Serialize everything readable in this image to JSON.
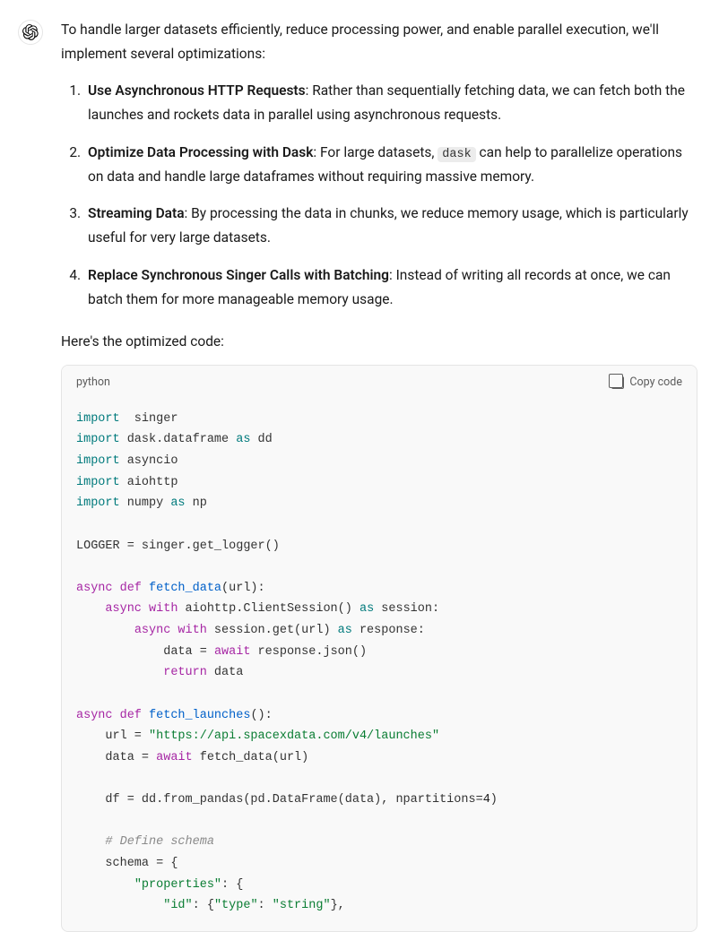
{
  "intro": "To handle larger datasets efficiently, reduce processing power, and enable parallel execution, we'll implement several optimizations:",
  "items": [
    {
      "title": "Use Asynchronous HTTP Requests",
      "text": ": Rather than sequentially fetching data, we can fetch both the launches and rockets data in parallel using asynchronous requests."
    },
    {
      "title": "Optimize Data Processing with Dask",
      "text_before": ": For large datasets, ",
      "inline_code": "dask",
      "text_after": " can help to parallelize operations on data and handle large dataframes without requiring massive memory."
    },
    {
      "title": "Streaming Data",
      "text": ": By processing the data in chunks, we reduce memory usage, which is particularly useful for very large datasets."
    },
    {
      "title": "Replace Synchronous Singer Calls with Batching",
      "text": ": Instead of writing all records at once, we can batch them for more manageable memory usage."
    }
  ],
  "lead_out": "Here's the optimized code:",
  "code_lang": "python",
  "copy_label": "Copy code",
  "code_tokens": [
    [
      [
        "kw",
        "import"
      ],
      [
        "",
        "  singer"
      ]
    ],
    [
      [
        "kw",
        "import"
      ],
      [
        "",
        " dask.dataframe "
      ],
      [
        "kw",
        "as"
      ],
      [
        "",
        " dd"
      ]
    ],
    [
      [
        "kw",
        "import"
      ],
      [
        "",
        " asyncio"
      ]
    ],
    [
      [
        "kw",
        "import"
      ],
      [
        "",
        " aiohttp"
      ]
    ],
    [
      [
        "kw",
        "import"
      ],
      [
        "",
        " numpy "
      ],
      [
        "kw",
        "as"
      ],
      [
        "",
        " np"
      ]
    ],
    [],
    [
      [
        "",
        "LOGGER = singer.get_logger()"
      ]
    ],
    [],
    [
      [
        "pkw",
        "async def "
      ],
      [
        "fn",
        "fetch_data"
      ],
      [
        "",
        "(url):"
      ]
    ],
    [
      [
        "",
        "    "
      ],
      [
        "pkw",
        "async with"
      ],
      [
        "",
        " aiohttp.ClientSession() "
      ],
      [
        "kw",
        "as"
      ],
      [
        "",
        " session:"
      ]
    ],
    [
      [
        "",
        "        "
      ],
      [
        "pkw",
        "async with"
      ],
      [
        "",
        " session.get(url) "
      ],
      [
        "kw",
        "as"
      ],
      [
        "",
        " response:"
      ]
    ],
    [
      [
        "",
        "            data = "
      ],
      [
        "pkw",
        "await"
      ],
      [
        "",
        " response.json()"
      ]
    ],
    [
      [
        "",
        "            "
      ],
      [
        "pkw",
        "return"
      ],
      [
        "",
        " data"
      ]
    ],
    [],
    [
      [
        "pkw",
        "async def "
      ],
      [
        "fn",
        "fetch_launches"
      ],
      [
        "",
        "():"
      ]
    ],
    [
      [
        "",
        "    url = "
      ],
      [
        "str",
        "\"https://api.spacexdata.com/v4/launches\""
      ]
    ],
    [
      [
        "",
        "    data = "
      ],
      [
        "pkw",
        "await"
      ],
      [
        "",
        " fetch_data(url)"
      ]
    ],
    [],
    [
      [
        "",
        "    df = dd.from_pandas(pd.DataFrame(data), npartitions="
      ],
      [
        "num",
        "4"
      ],
      [
        "",
        ")"
      ]
    ],
    [],
    [
      [
        "",
        "    "
      ],
      [
        "cmt",
        "# Define schema"
      ]
    ],
    [
      [
        "",
        "    schema = {"
      ]
    ],
    [
      [
        "",
        "        "
      ],
      [
        "str",
        "\"properties\""
      ],
      [
        "",
        ": {"
      ]
    ],
    [
      [
        "",
        "            "
      ],
      [
        "str",
        "\"id\""
      ],
      [
        "",
        ": {"
      ],
      [
        "str",
        "\"type\""
      ],
      [
        "",
        ": "
      ],
      [
        "str",
        "\"string\""
      ],
      [
        "",
        "},"
      ]
    ]
  ],
  "colors": {
    "text": "#1a1a1a",
    "code_bg": "#f9f9f9",
    "border": "#e5e5e5",
    "kw": "#007a7c",
    "pkw": "#a626a4",
    "fn": "#0060c9",
    "str": "#0a7d33",
    "cmt": "#8a8a8a",
    "inline_code_bg": "#ececec"
  }
}
